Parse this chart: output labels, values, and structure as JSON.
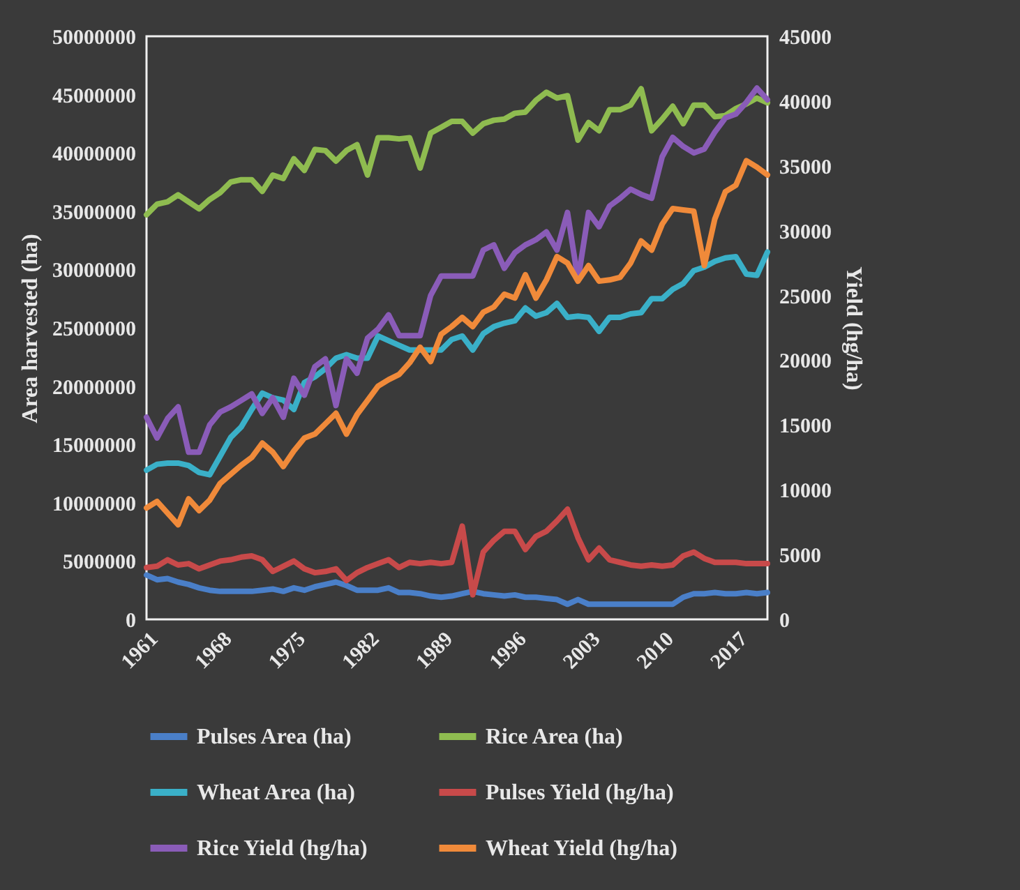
{
  "chart_data": {
    "type": "line",
    "xlabel": null,
    "ylabel": "Area harvested (ha)",
    "y2label": "Yield (hg/ha)",
    "x": [
      1961,
      1962,
      1963,
      1964,
      1965,
      1966,
      1967,
      1968,
      1969,
      1970,
      1971,
      1972,
      1973,
      1974,
      1975,
      1976,
      1977,
      1978,
      1979,
      1980,
      1981,
      1982,
      1983,
      1984,
      1985,
      1986,
      1987,
      1988,
      1989,
      1990,
      1991,
      1992,
      1993,
      1994,
      1995,
      1996,
      1997,
      1998,
      1999,
      2000,
      2001,
      2002,
      2003,
      2004,
      2005,
      2006,
      2007,
      2008,
      2009,
      2010,
      2011,
      2012,
      2013,
      2014,
      2015,
      2016,
      2017,
      2018,
      2019,
      2020
    ],
    "xlim": [
      1961,
      2020
    ],
    "xticks": [
      1961,
      1968,
      1975,
      1982,
      1989,
      1996,
      2003,
      2010,
      2017
    ],
    "ylim": [
      0,
      50000000
    ],
    "yticks": [
      0,
      5000000,
      10000000,
      15000000,
      20000000,
      25000000,
      30000000,
      35000000,
      40000000,
      45000000,
      50000000
    ],
    "y2lim": [
      0,
      45000
    ],
    "y2ticks": [
      0,
      5000,
      10000,
      15000,
      20000,
      25000,
      30000,
      35000,
      40000,
      45000
    ],
    "series": [
      {
        "name": "Pulses Area (ha)",
        "color": "#4a7fc8",
        "values": [
          3800000,
          3400000,
          3500000,
          3200000,
          3000000,
          2700000,
          2500000,
          2400000,
          2400000,
          2400000,
          2400000,
          2500000,
          2600000,
          2400000,
          2700000,
          2500000,
          2800000,
          3000000,
          3200000,
          2900000,
          2500000,
          2500000,
          2500000,
          2700000,
          2300000,
          2300000,
          2200000,
          2000000,
          1900000,
          2000000,
          2200000,
          2400000,
          2200000,
          2100000,
          2000000,
          2100000,
          1900000,
          1900000,
          1800000,
          1700000,
          1300000,
          1700000,
          1300000,
          1300000,
          1300000,
          1300000,
          1300000,
          1300000,
          1300000,
          1300000,
          1300000,
          1900000,
          2200000,
          2200000,
          2300000,
          2200000,
          2200000,
          2300000,
          2200000,
          2300000
        ]
      },
      {
        "name": "Rice Area (ha)",
        "color": "#8fbc50",
        "values": [
          34700000,
          35600000,
          35800000,
          36400000,
          35800000,
          35200000,
          36000000,
          36600000,
          37500000,
          37700000,
          37700000,
          36700000,
          38100000,
          37800000,
          39500000,
          38500000,
          40300000,
          40200000,
          39300000,
          40200000,
          40700000,
          38100000,
          41300000,
          41300000,
          41200000,
          41300000,
          38700000,
          41700000,
          42200000,
          42700000,
          42700000,
          41700000,
          42500000,
          42800000,
          42900000,
          43400000,
          43500000,
          44500000,
          45200000,
          44700000,
          44900000,
          41100000,
          42600000,
          41900000,
          43700000,
          43700000,
          44100000,
          45500000,
          41900000,
          42900000,
          44000000,
          42500000,
          44100000,
          44100000,
          43100000,
          43200000,
          43800000,
          44200000,
          44700000,
          44300000
        ]
      },
      {
        "name": "Wheat Area (ha)",
        "color": "#3ab0c8",
        "values": [
          12800000,
          13300000,
          13400000,
          13400000,
          13200000,
          12600000,
          12400000,
          14000000,
          15600000,
          16500000,
          18000000,
          19400000,
          19000000,
          18800000,
          18000000,
          20300000,
          20800000,
          21500000,
          22400000,
          22700000,
          22400000,
          22400000,
          24300000,
          23900000,
          23500000,
          23100000,
          23100000,
          23100000,
          23100000,
          24000000,
          24300000,
          23100000,
          24500000,
          25100000,
          25400000,
          25600000,
          26700000,
          26000000,
          26300000,
          27100000,
          25900000,
          26000000,
          25900000,
          24700000,
          25900000,
          25900000,
          26200000,
          26300000,
          27500000,
          27500000,
          28300000,
          28800000,
          29900000,
          30200000,
          30700000,
          31000000,
          31100000,
          29600000,
          29500000,
          31500000
        ]
      },
      {
        "name": "Pulses Yield (hg/ha)",
        "color": "#c84a4a",
        "axis": "y2",
        "values": [
          4000,
          4100,
          4600,
          4200,
          4300,
          3900,
          4200,
          4500,
          4600,
          4800,
          4900,
          4600,
          3700,
          4100,
          4500,
          3900,
          3600,
          3700,
          3900,
          3000,
          3600,
          4000,
          4300,
          4600,
          4000,
          4400,
          4300,
          4400,
          4300,
          4400,
          7200,
          1900,
          5200,
          6100,
          6800,
          6800,
          5400,
          6400,
          6800,
          7600,
          8500,
          6300,
          4600,
          5500,
          4600,
          4400,
          4200,
          4100,
          4200,
          4100,
          4200,
          4900,
          5200,
          4700,
          4400,
          4400,
          4400,
          4300,
          4300,
          4300
        ]
      },
      {
        "name": "Rice Yield (hg/ha)",
        "color": "#8a5cb8",
        "axis": "y2",
        "values": [
          15600,
          14000,
          15500,
          16400,
          12900,
          12900,
          15000,
          16000,
          16400,
          16900,
          17400,
          15900,
          17100,
          15600,
          18600,
          17300,
          19500,
          20100,
          16500,
          20100,
          19000,
          21700,
          22400,
          23500,
          21900,
          21900,
          21900,
          25000,
          26500,
          26500,
          26500,
          26500,
          28500,
          28900,
          27100,
          28300,
          28900,
          29300,
          29900,
          28500,
          31400,
          26200,
          31400,
          30300,
          31900,
          32500,
          33200,
          32800,
          32500,
          35700,
          37200,
          36500,
          36000,
          36300,
          37600,
          38700,
          39000,
          39900,
          41000,
          40100
        ]
      },
      {
        "name": "Wheat Yield (hg/ha)",
        "color": "#f08a3a",
        "axis": "y2",
        "values": [
          8600,
          9100,
          8200,
          7300,
          9300,
          8400,
          9200,
          10500,
          11200,
          11900,
          12500,
          13600,
          12900,
          11800,
          13000,
          14000,
          14300,
          15100,
          15900,
          14300,
          15800,
          16900,
          18000,
          18500,
          18900,
          19800,
          21000,
          19900,
          22000,
          22600,
          23300,
          22600,
          23700,
          24100,
          25100,
          24800,
          26600,
          24800,
          26200,
          28000,
          27500,
          26100,
          27300,
          26100,
          26200,
          26400,
          27500,
          29200,
          28500,
          30500,
          31700,
          31600,
          31500,
          27300,
          30900,
          33000,
          33500,
          35400,
          34900,
          34300
        ]
      }
    ],
    "legend": "bottom",
    "grid": false,
    "line_style": "solid"
  }
}
